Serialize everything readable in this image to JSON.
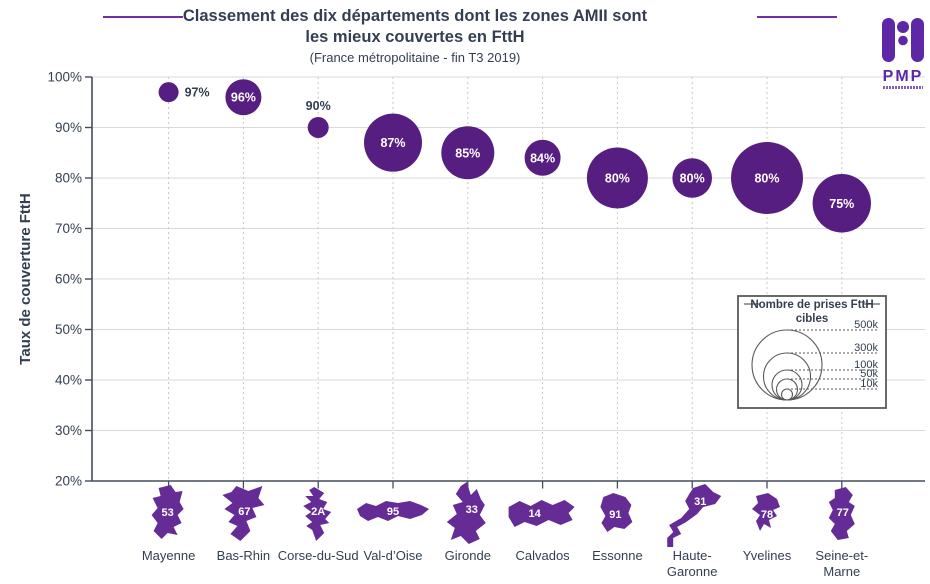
{
  "header": {
    "title_line1": "Classement des dix départements dont les zones AMII sont",
    "title_line2": "les mieux couvertes en FttH",
    "subtitle": "(France métropolitaine - fin T3 2019)",
    "logo": {
      "text": "PMP"
    }
  },
  "chart_data": {
    "type": "bubble",
    "title": "Classement des dix départements dont les zones AMII sont les mieux couvertes en FttH",
    "subtitle": "(France métropolitaine - fin T3 2019)",
    "ylabel": "Taux de couverture FttH",
    "ylim": [
      20,
      100
    ],
    "y_tick_step": 10,
    "y_tick_labels": [
      "100%",
      "90%",
      "80%",
      "70%",
      "60%",
      "50%",
      "40%",
      "30%",
      "20%"
    ],
    "grid": true,
    "bubble_size_encodes": "Nombre de prises FttH cibles",
    "categories": [
      "Mayenne",
      "Bas-Rhin",
      "Corse-du-Sud",
      "Val-d’Oise",
      "Gironde",
      "Calvados",
      "Essonne",
      "Haute-Garonne",
      "Yvelines",
      "Seine-et-Marne"
    ],
    "points": [
      {
        "name": "Mayenne",
        "label_lines": [
          "Mayenne"
        ],
        "code": "53",
        "value": 97,
        "label": "97%",
        "label_pos": "right",
        "r": 10
      },
      {
        "name": "Bas-Rhin",
        "label_lines": [
          "Bas-Rhin"
        ],
        "code": "67",
        "value": 96,
        "label": "96%",
        "label_pos": "inside",
        "r": 18
      },
      {
        "name": "Corse-du-Sud",
        "label_lines": [
          "Corse-du-Sud"
        ],
        "code": "2A",
        "value": 90,
        "label": "90%",
        "label_pos": "above",
        "r": 10.5
      },
      {
        "name": "Val-d’Oise",
        "label_lines": [
          "Val-d’Oise"
        ],
        "code": "95",
        "value": 87,
        "label": "87%",
        "label_pos": "inside",
        "r": 29
      },
      {
        "name": "Gironde",
        "label_lines": [
          "Gironde"
        ],
        "code": "33",
        "value": 85,
        "label": "85%",
        "label_pos": "inside",
        "r": 26.5
      },
      {
        "name": "Calvados",
        "label_lines": [
          "Calvados"
        ],
        "code": "14",
        "value": 84,
        "label": "84%",
        "label_pos": "inside",
        "r": 18
      },
      {
        "name": "Essonne",
        "label_lines": [
          "Essonne"
        ],
        "code": "91",
        "value": 80,
        "label": "80%",
        "label_pos": "inside",
        "r": 30.5
      },
      {
        "name": "Haute-Garonne",
        "label_lines": [
          "Haute-",
          "Garonne"
        ],
        "code": "31",
        "value": 80,
        "label": "80%",
        "label_pos": "inside",
        "r": 19.8
      },
      {
        "name": "Yvelines",
        "label_lines": [
          "Yvelines"
        ],
        "code": "78",
        "value": 80,
        "label": "80%",
        "label_pos": "inside",
        "r": 36
      },
      {
        "name": "Seine-et-Marne",
        "label_lines": [
          "Seine-et-",
          "Marne"
        ],
        "code": "77",
        "value": 75,
        "label": "75%",
        "label_pos": "inside",
        "r": 29.2
      }
    ],
    "size_legend": {
      "title_lines": [
        "Nombre de prises FttH",
        "cibles"
      ],
      "entries": [
        {
          "label": "500k",
          "r": 35
        },
        {
          "label": "300k",
          "r": 23.5
        },
        {
          "label": "100k",
          "r": 15
        },
        {
          "label": "50k",
          "r": 10.5
        },
        {
          "label": "10k",
          "r": 5.5
        }
      ]
    }
  },
  "colors": {
    "bubble_purple": "#571e82",
    "shape_purple": "#662c96",
    "accent_purple": "#7030a0",
    "logo_purple": "#5e27a6",
    "text_dark": "#333f50",
    "grid_gray": "#d9d9d9",
    "dotted_gray": "#c8c8c8",
    "axis_gray": "#444d5c",
    "legend_line": "#595959",
    "label_white": "#ffffff"
  }
}
